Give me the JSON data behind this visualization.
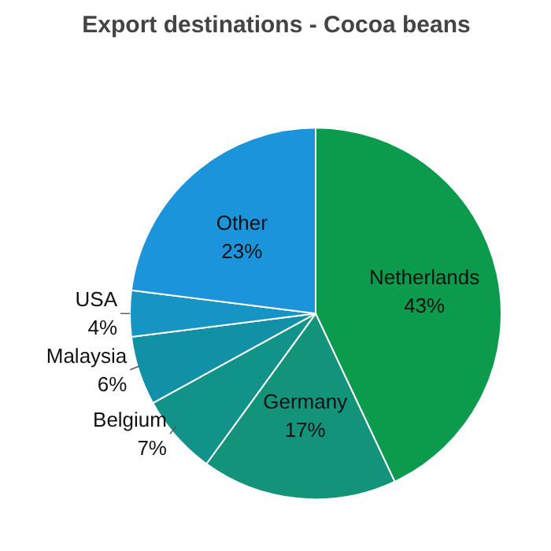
{
  "chart_data": {
    "type": "pie",
    "title": "Export destinations - Cocoa beans",
    "categories": [
      "Netherlands",
      "Germany",
      "Belgium",
      "Malaysia",
      "USA",
      "Other"
    ],
    "values": [
      43,
      17,
      7,
      6,
      4,
      23
    ],
    "colors": [
      "#0c9a4c",
      "#13937a",
      "#11938a",
      "#1291a6",
      "#1694c4",
      "#1b94dc"
    ],
    "value_labels": [
      "43%",
      "17%",
      "7%",
      "6%",
      "4%",
      "23%"
    ]
  }
}
